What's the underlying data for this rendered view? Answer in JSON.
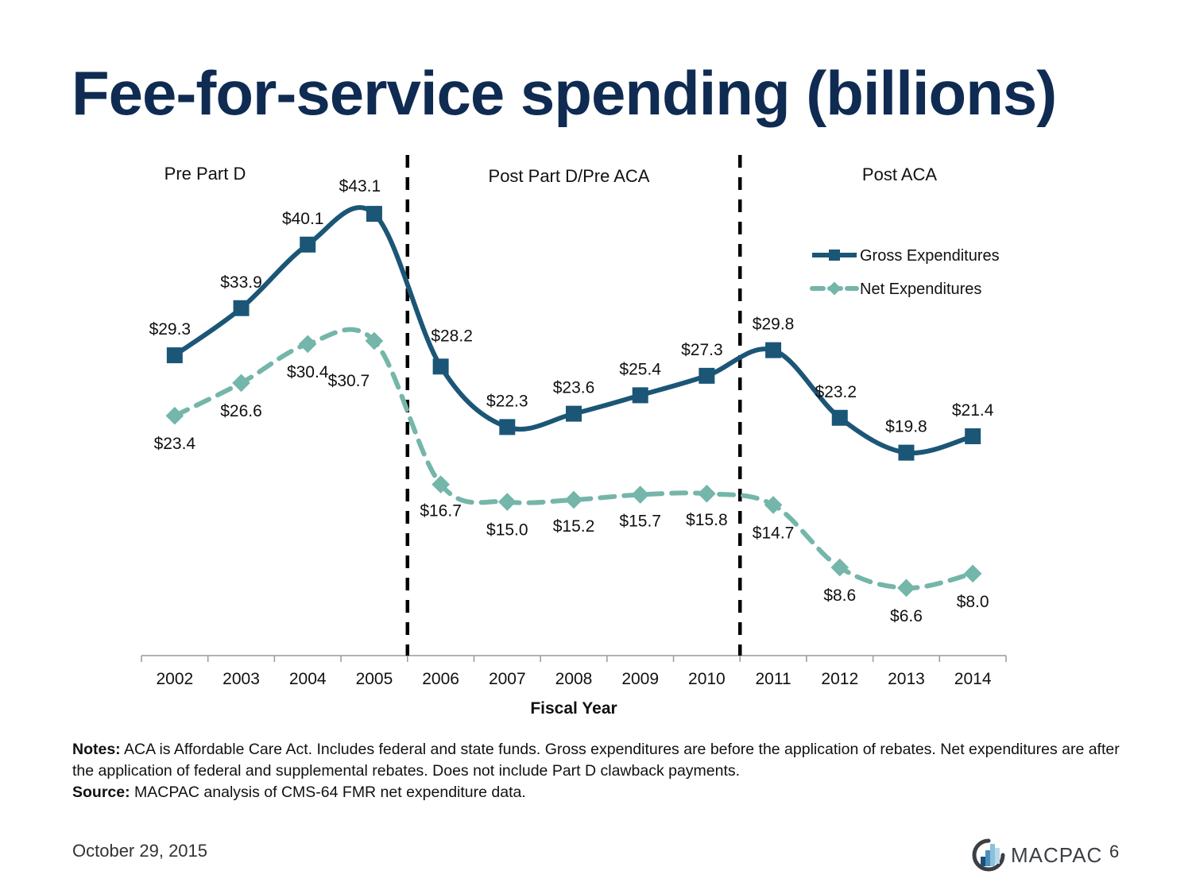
{
  "slide": {
    "title": "Fee-for-service spending (billions)",
    "date": "October 29, 2015",
    "page_number": "6",
    "logo_text": "MACPAC",
    "notes_label": "Notes:",
    "notes_text": " ACA is Affordable Care Act. Includes federal and state funds. Gross expenditures are before the application of rebates. Net expenditures are after the application of federal and supplemental rebates. Does not include Part D clawback payments.",
    "source_label": "Source:",
    "source_text": " MACPAC analysis of CMS-64 FMR net expenditure data."
  },
  "colors": {
    "title": "#0f2b52",
    "gross": "#1b5676",
    "net": "#74b6a9",
    "divider": "#000000",
    "axis": "#999999"
  },
  "chart_data": {
    "type": "line",
    "title": "Fee-for-service spending (billions)",
    "xlabel": "Fiscal Year",
    "ylabel": "",
    "x": [
      "2002",
      "2003",
      "2004",
      "2005",
      "2006",
      "2007",
      "2008",
      "2009",
      "2010",
      "2011",
      "2012",
      "2013",
      "2014"
    ],
    "ylim": [
      0,
      49
    ],
    "grid": false,
    "legend_position": "top-right",
    "series": [
      {
        "name": "Gross Expenditures",
        "marker": "square",
        "style": "solid",
        "values": [
          29.3,
          33.9,
          40.1,
          43.1,
          28.2,
          22.3,
          23.6,
          25.4,
          27.3,
          29.8,
          23.2,
          19.8,
          21.4
        ],
        "labels": [
          "$29.3",
          "$33.9",
          "$40.1",
          "$43.1",
          "$28.2",
          "$22.3",
          "$23.6",
          "$25.4",
          "$27.3",
          "$29.8",
          "$23.2",
          "$19.8",
          "$21.4"
        ]
      },
      {
        "name": "Net Expenditures",
        "marker": "diamond",
        "style": "dashed",
        "values": [
          23.4,
          26.6,
          30.4,
          30.7,
          16.7,
          15.0,
          15.2,
          15.7,
          15.8,
          14.7,
          8.6,
          6.6,
          8.0
        ],
        "labels": [
          "$23.4",
          "$26.6",
          "$30.4",
          "$30.7",
          "$16.7",
          "$15.0",
          "$15.2",
          "$15.7",
          "$15.8",
          "$14.7",
          "$8.6",
          "$6.6",
          "$8.0"
        ]
      }
    ],
    "period_dividers": [
      {
        "between": [
          "2005",
          "2006"
        ]
      },
      {
        "between": [
          "2010",
          "2011"
        ]
      }
    ],
    "period_labels": [
      {
        "text": "Pre Part D",
        "span": [
          "2002",
          "2005"
        ]
      },
      {
        "text": "Post Part D/Pre ACA",
        "span": [
          "2006",
          "2010"
        ]
      },
      {
        "text": "Post ACA",
        "span": [
          "2011",
          "2014"
        ]
      }
    ]
  }
}
